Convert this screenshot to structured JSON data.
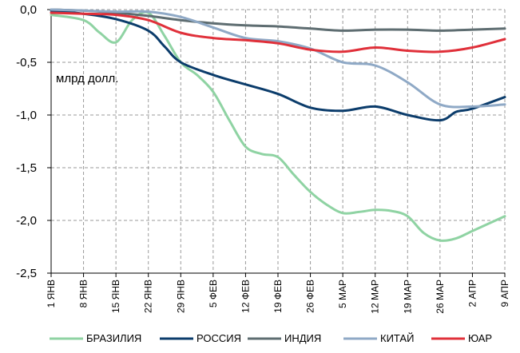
{
  "chart_data": {
    "type": "line",
    "ylabel": "млрд долл.",
    "ylim": [
      -2.5,
      0.0
    ],
    "yticks": [
      0.0,
      -0.5,
      -1.0,
      -1.5,
      -2.0,
      -2.5
    ],
    "ytick_labels": [
      "0,0",
      "-0,5",
      "-1,0",
      "-1,5",
      "-2,0",
      "-2,5"
    ],
    "categories": [
      "1 ЯНВ",
      "8 ЯНВ",
      "15 ЯНВ",
      "22 ЯНВ",
      "29 ЯНВ",
      "5 ФЕВ",
      "12 ФЕВ",
      "19 ФЕВ",
      "26 ФЕВ",
      "5 МАР",
      "12 МАР",
      "19 МАР",
      "26 МАР",
      "2 АПР",
      "9 АПР"
    ],
    "grid": true,
    "legend_position": "bottom",
    "series": [
      {
        "name": "БРАЗИЛИЯ",
        "color": "#8fd3a3",
        "points": [
          [
            0,
            -0.05
          ],
          [
            1,
            -0.1
          ],
          [
            1.5,
            -0.22
          ],
          [
            2,
            -0.31
          ],
          [
            2.5,
            -0.1
          ],
          [
            3,
            -0.03
          ],
          [
            3.5,
            -0.25
          ],
          [
            4,
            -0.5
          ],
          [
            4.5,
            -0.62
          ],
          [
            5,
            -0.78
          ],
          [
            5.5,
            -1.05
          ],
          [
            6,
            -1.3
          ],
          [
            6.5,
            -1.37
          ],
          [
            7,
            -1.4
          ],
          [
            7.5,
            -1.57
          ],
          [
            8,
            -1.73
          ],
          [
            8.5,
            -1.85
          ],
          [
            9,
            -1.93
          ],
          [
            9.5,
            -1.92
          ],
          [
            10,
            -1.9
          ],
          [
            10.5,
            -1.91
          ],
          [
            11,
            -1.96
          ],
          [
            11.5,
            -2.12
          ],
          [
            12,
            -2.19
          ],
          [
            12.5,
            -2.17
          ],
          [
            13,
            -2.1
          ],
          [
            14,
            -1.96
          ]
        ]
      },
      {
        "name": "РОССИЯ",
        "color": "#0b3c6b",
        "points": [
          [
            0,
            -0.01
          ],
          [
            1,
            -0.04
          ],
          [
            2,
            -0.09
          ],
          [
            3,
            -0.2
          ],
          [
            3.5,
            -0.35
          ],
          [
            4,
            -0.5
          ],
          [
            5,
            -0.62
          ],
          [
            6,
            -0.71
          ],
          [
            7,
            -0.8
          ],
          [
            8,
            -0.93
          ],
          [
            9,
            -0.96
          ],
          [
            10,
            -0.92
          ],
          [
            11,
            -1.0
          ],
          [
            12,
            -1.05
          ],
          [
            12.5,
            -0.97
          ],
          [
            13,
            -0.94
          ],
          [
            14,
            -0.83
          ]
        ]
      },
      {
        "name": "ИНДИЯ",
        "color": "#5e6d71",
        "points": [
          [
            0,
            0.0
          ],
          [
            1,
            -0.01
          ],
          [
            2,
            -0.03
          ],
          [
            3,
            -0.06
          ],
          [
            4,
            -0.1
          ],
          [
            5,
            -0.13
          ],
          [
            6,
            -0.15
          ],
          [
            7,
            -0.16
          ],
          [
            8,
            -0.18
          ],
          [
            9,
            -0.2
          ],
          [
            10,
            -0.19
          ],
          [
            11,
            -0.19
          ],
          [
            12,
            -0.2
          ],
          [
            13,
            -0.19
          ],
          [
            14,
            -0.18
          ]
        ]
      },
      {
        "name": "КИТАЙ",
        "color": "#8fa9c6",
        "points": [
          [
            0,
            0.0
          ],
          [
            1,
            -0.01
          ],
          [
            2,
            -0.02
          ],
          [
            3,
            -0.02
          ],
          [
            4,
            -0.07
          ],
          [
            5,
            -0.17
          ],
          [
            6,
            -0.27
          ],
          [
            7,
            -0.3
          ],
          [
            8,
            -0.37
          ],
          [
            9,
            -0.5
          ],
          [
            10,
            -0.53
          ],
          [
            11,
            -0.69
          ],
          [
            12,
            -0.9
          ],
          [
            13,
            -0.92
          ],
          [
            14,
            -0.9
          ]
        ]
      },
      {
        "name": "ЮАР",
        "color": "#e0303a",
        "points": [
          [
            0,
            -0.03
          ],
          [
            1,
            -0.04
          ],
          [
            2,
            -0.05
          ],
          [
            3,
            -0.1
          ],
          [
            4,
            -0.22
          ],
          [
            5,
            -0.27
          ],
          [
            6,
            -0.29
          ],
          [
            7,
            -0.32
          ],
          [
            8,
            -0.38
          ],
          [
            9,
            -0.4
          ],
          [
            10,
            -0.36
          ],
          [
            11,
            -0.39
          ],
          [
            12,
            -0.4
          ],
          [
            13,
            -0.36
          ],
          [
            14,
            -0.28
          ]
        ]
      }
    ]
  }
}
